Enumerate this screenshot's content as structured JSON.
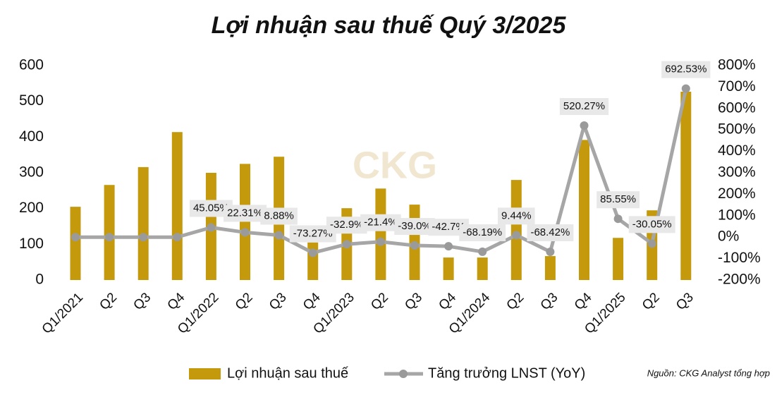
{
  "chart_data": {
    "type": "bar_line",
    "title": "Lợi nhuận sau thuế Quý 3/2025",
    "watermark": "CKG",
    "source": "Nguồn: CKG Analyst tổng hợp",
    "categories": [
      "Q1/2021",
      "Q2",
      "Q3",
      "Q4",
      "Q1/2022",
      "Q2",
      "Q3",
      "Q4",
      "Q1/2023",
      "Q2",
      "Q3",
      "Q4",
      "Q1/2024",
      "Q2",
      "Q3",
      "Q4",
      "Q1/2025",
      "Q2",
      "Q3"
    ],
    "series": [
      {
        "name": "Lợi nhuận sau thuế",
        "color": "#c49a0c",
        "type": "bar",
        "values": [
          205,
          266,
          316,
          414,
          300,
          325,
          345,
          105,
          201,
          256,
          211,
          63,
          63,
          280,
          67,
          392,
          118,
          195,
          527
        ]
      },
      {
        "name": "Tăng trưởng LNST (YoY)",
        "color": "#a6a6a6",
        "type": "line",
        "axis": "y2",
        "values": [
          0,
          0,
          0,
          0,
          45.05,
          22.31,
          8.88,
          -73.27,
          -32.9,
          -21.4,
          -39.0,
          -42.7,
          -68.19,
          9.44,
          -68.42,
          520.27,
          85.55,
          -30.05,
          692.53
        ],
        "value_labels": [
          null,
          null,
          null,
          null,
          "45.05%",
          "22.31%",
          "8.88%",
          "-73.27%",
          "-32.9%",
          "-21.4%",
          "-39.0%",
          "-42.7%",
          "-68.19%",
          "9.44%",
          "-68.42%",
          "520.27%",
          "85.55%",
          "-30.05%",
          "692.53%"
        ]
      }
    ],
    "ylim": [
      0,
      600
    ],
    "yticks": [
      0,
      100,
      200,
      300,
      400,
      500,
      600
    ],
    "y2lim": [
      -200,
      800
    ],
    "y2ticks": [
      {
        "value": -200,
        "label": "-200%"
      },
      {
        "value": -100,
        "label": "-100%"
      },
      {
        "value": 0,
        "label": "0%"
      },
      {
        "value": 100,
        "label": "100%"
      },
      {
        "value": 200,
        "label": "200%"
      },
      {
        "value": 300,
        "label": "300%"
      },
      {
        "value": 400,
        "label": "400%"
      },
      {
        "value": 500,
        "label": "500%"
      },
      {
        "value": 600,
        "label": "600%"
      },
      {
        "value": 700,
        "label": "700%"
      },
      {
        "value": 800,
        "label": "800%"
      }
    ],
    "legend": "bottom"
  }
}
